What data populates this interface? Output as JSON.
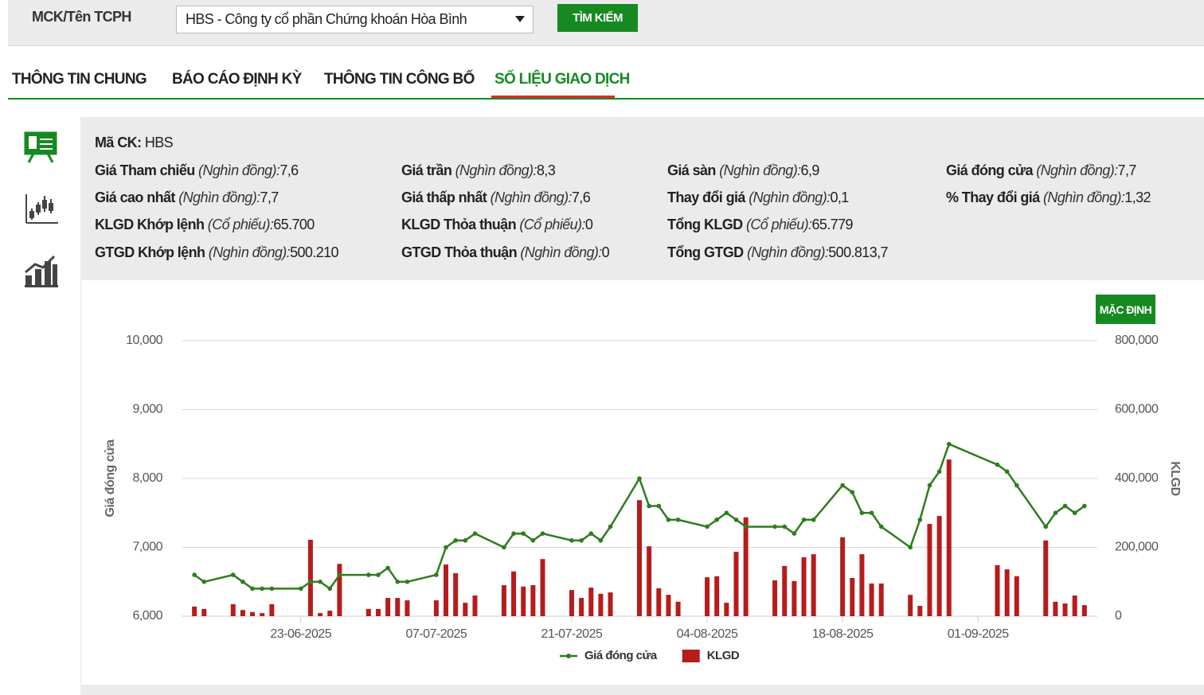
{
  "search": {
    "label": "MCK/Tên TCPH",
    "selected": "HBS - Công ty cổ phần Chứng khoán Hòa Bình",
    "button": "TÌM KIẾM"
  },
  "tabs": [
    "THÔNG TIN CHUNG",
    "BÁO CÁO ĐỊNH KỲ",
    "THÔNG TIN CÔNG BỐ",
    "SỐ LIỆU GIAO DỊCH"
  ],
  "info": {
    "code": {
      "label": "Mã CK:",
      "value": "HBS"
    },
    "rows": [
      [
        {
          "label": "Giá Tham chiếu",
          "unit": "(Nghìn đồng):",
          "value": "7,6"
        },
        {
          "label": "Giá trần",
          "unit": "(Nghìn đồng):",
          "value": "8,3"
        },
        {
          "label": "Giá sàn",
          "unit": "(Nghìn đồng):",
          "value": "6,9"
        },
        {
          "label": "Giá đóng cửa",
          "unit": "(Nghìn đồng):",
          "value": "7,7"
        }
      ],
      [
        {
          "label": "Giá cao nhất",
          "unit": "(Nghìn đồng):",
          "value": "7,7"
        },
        {
          "label": "Giá thấp nhất",
          "unit": "(Nghìn đồng):",
          "value": "7,6"
        },
        {
          "label": "Thay đổi giá",
          "unit": "(Nghìn đồng):",
          "value": "0,1"
        },
        {
          "label": "% Thay đổi giá",
          "unit": "(Nghìn đồng):",
          "value": "1,32"
        }
      ],
      [
        {
          "label": "KLGD Khớp lệnh",
          "unit": "(Cổ phiếu):",
          "value": "65.700"
        },
        {
          "label": "KLGD Thỏa thuận",
          "unit": "(Cổ phiếu):",
          "value": "0"
        },
        {
          "label": "Tổng KLGD",
          "unit": "(Cổ phiếu):",
          "value": "65.779"
        }
      ],
      [
        {
          "label": "GTGD Khớp lệnh",
          "unit": "(Nghìn đồng):",
          "value": "500.210"
        },
        {
          "label": "GTGD Thỏa thuận",
          "unit": "(Nghìn đồng):",
          "value": "0"
        },
        {
          "label": "Tổng GTGD",
          "unit": "(Nghìn đồng):",
          "value": "500.813,7"
        }
      ]
    ]
  },
  "reset_button": "MẶC ĐỊNH",
  "chart_data": {
    "type": "combo",
    "ylabel": "Giá đóng cửa",
    "y2label": "KLGD",
    "grid": true,
    "legend": "bottom",
    "xlim": [
      "2025-06-11",
      "2025-09-13"
    ],
    "xticks": [
      {
        "value": "2025-06-23",
        "label": "23-06-2025"
      },
      {
        "value": "2025-07-07",
        "label": "07-07-2025"
      },
      {
        "value": "2025-07-21",
        "label": "21-07-2025"
      },
      {
        "value": "2025-08-04",
        "label": "04-08-2025"
      },
      {
        "value": "2025-08-18",
        "label": "18-08-2025"
      },
      {
        "value": "2025-09-01",
        "label": "01-09-2025"
      }
    ],
    "ylim": [
      6000,
      10000
    ],
    "yticks": [
      {
        "value": 6000,
        "label": "6,000"
      },
      {
        "value": 7000,
        "label": "7,000"
      },
      {
        "value": 8000,
        "label": "8,000"
      },
      {
        "value": 9000,
        "label": "9,000"
      },
      {
        "value": 10000,
        "label": "10,000"
      }
    ],
    "y2lim": [
      0,
      800000
    ],
    "y2ticks": [
      0,
      {
        "value": 200000,
        "label": "200,000"
      },
      {
        "value": 400000,
        "label": "400,000"
      },
      {
        "value": 600000,
        "label": "600,000"
      },
      {
        "value": 800000,
        "label": "800,000"
      }
    ],
    "x": [
      "2025-06-12",
      "2025-06-13",
      "2025-06-16",
      "2025-06-17",
      "2025-06-18",
      "2025-06-19",
      "2025-06-20",
      "2025-06-23",
      "2025-06-24",
      "2025-06-25",
      "2025-06-26",
      "2025-06-27",
      "2025-06-30",
      "2025-07-01",
      "2025-07-02",
      "2025-07-03",
      "2025-07-04",
      "2025-07-07",
      "2025-07-08",
      "2025-07-09",
      "2025-07-10",
      "2025-07-11",
      "2025-07-14",
      "2025-07-15",
      "2025-07-16",
      "2025-07-17",
      "2025-07-18",
      "2025-07-21",
      "2025-07-22",
      "2025-07-23",
      "2025-07-24",
      "2025-07-25",
      "2025-07-28",
      "2025-07-29",
      "2025-07-30",
      "2025-07-31",
      "2025-08-01",
      "2025-08-04",
      "2025-08-05",
      "2025-08-06",
      "2025-08-07",
      "2025-08-08",
      "2025-08-11",
      "2025-08-12",
      "2025-08-13",
      "2025-08-14",
      "2025-08-15",
      "2025-08-18",
      "2025-08-19",
      "2025-08-20",
      "2025-08-21",
      "2025-08-22",
      "2025-08-25",
      "2025-08-26",
      "2025-08-27",
      "2025-08-28",
      "2025-08-29",
      "2025-09-03",
      "2025-09-04",
      "2025-09-05",
      "2025-09-08",
      "2025-09-09",
      "2025-09-10",
      "2025-09-11",
      "2025-09-12"
    ],
    "series": [
      {
        "name": "Giá đóng cửa",
        "type": "line",
        "color": "#2e7d1e",
        "values": [
          6600,
          6500,
          6600,
          6500,
          6400,
          6400,
          6400,
          6400,
          6500,
          6500,
          6400,
          6600,
          6600,
          6600,
          6700,
          6500,
          6500,
          6600,
          7000,
          7100,
          7100,
          7200,
          7000,
          7200,
          7200,
          7100,
          7200,
          7100,
          7100,
          7200,
          7100,
          7300,
          8000,
          7600,
          7600,
          7400,
          7400,
          7300,
          7400,
          7500,
          7400,
          7300,
          7300,
          7300,
          7200,
          7400,
          7400,
          7900,
          7800,
          7500,
          7500,
          7300,
          7000,
          7400,
          7900,
          8100,
          8500,
          8200,
          8100,
          7900,
          7300,
          7500,
          7600,
          7500,
          7600
        ]
      },
      {
        "name": "KLGD",
        "type": "bar",
        "axis": "y2",
        "color": "#b71c1c",
        "values": [
          28000,
          21000,
          35000,
          18000,
          12000,
          9000,
          35000,
          null,
          222000,
          9000,
          16000,
          152000,
          21000,
          21000,
          53000,
          53000,
          46000,
          46000,
          150000,
          125000,
          39000,
          60000,
          90000,
          130000,
          86000,
          90000,
          166000,
          76000,
          53000,
          83000,
          65000,
          69000,
          337000,
          203000,
          81000,
          62000,
          42000,
          113000,
          116000,
          39000,
          187000,
          287000,
          104000,
          146000,
          102000,
          171000,
          180000,
          229000,
          111000,
          180000,
          95000,
          95000,
          62000,
          30000,
          268000,
          291000,
          455000,
          148000,
          136000,
          116000,
          220000,
          42000,
          37000,
          60000,
          32000
        ]
      }
    ]
  }
}
